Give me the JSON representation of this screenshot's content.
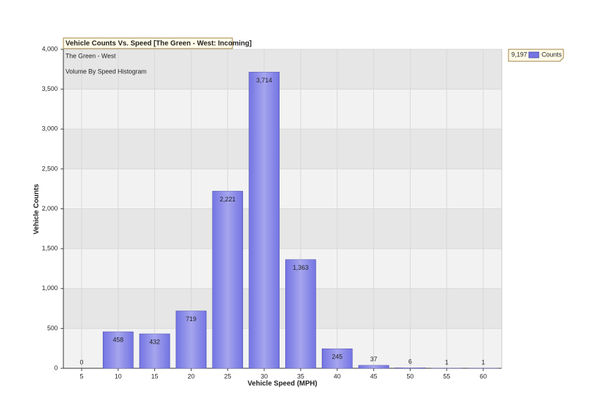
{
  "chart_data": {
    "type": "bar",
    "title": "Vehicle Counts Vs. Speed [The Green - West: Incoming]",
    "subtitle": "The Green - West",
    "annotation": "Volume By Speed Histogram",
    "x_label": "Vehicle Speed (MPH)",
    "y_label": "Vehicle Counts",
    "categories": [
      "5",
      "10",
      "15",
      "20",
      "25",
      "30",
      "35",
      "40",
      "45",
      "50",
      "55",
      "60"
    ],
    "series": [
      {
        "name": "Counts",
        "color": "#7474e4",
        "values": [
          0,
          458,
          432,
          719,
          2221,
          3714,
          1363,
          245,
          37,
          6,
          1,
          1
        ],
        "value_labels": [
          "0",
          "458",
          "432",
          "719",
          "2,221",
          "3,714",
          "1,363",
          "245",
          "37",
          "6",
          "1",
          "1"
        ]
      }
    ],
    "legend_total": "9,197",
    "ylim": [
      0,
      4000
    ],
    "yticks": [
      0,
      500,
      {
        "value": 1000,
        "label": "1,000"
      },
      {
        "value": 1500,
        "label": "1,500"
      },
      {
        "value": 2000,
        "label": "2,000"
      },
      {
        "value": 2500,
        "label": "2,500"
      },
      {
        "value": 3000,
        "label": "3,000"
      },
      {
        "value": 3500,
        "label": "3,500"
      },
      {
        "value": 4000,
        "label": "4,000"
      }
    ],
    "grid": true,
    "legend": "top-right"
  }
}
